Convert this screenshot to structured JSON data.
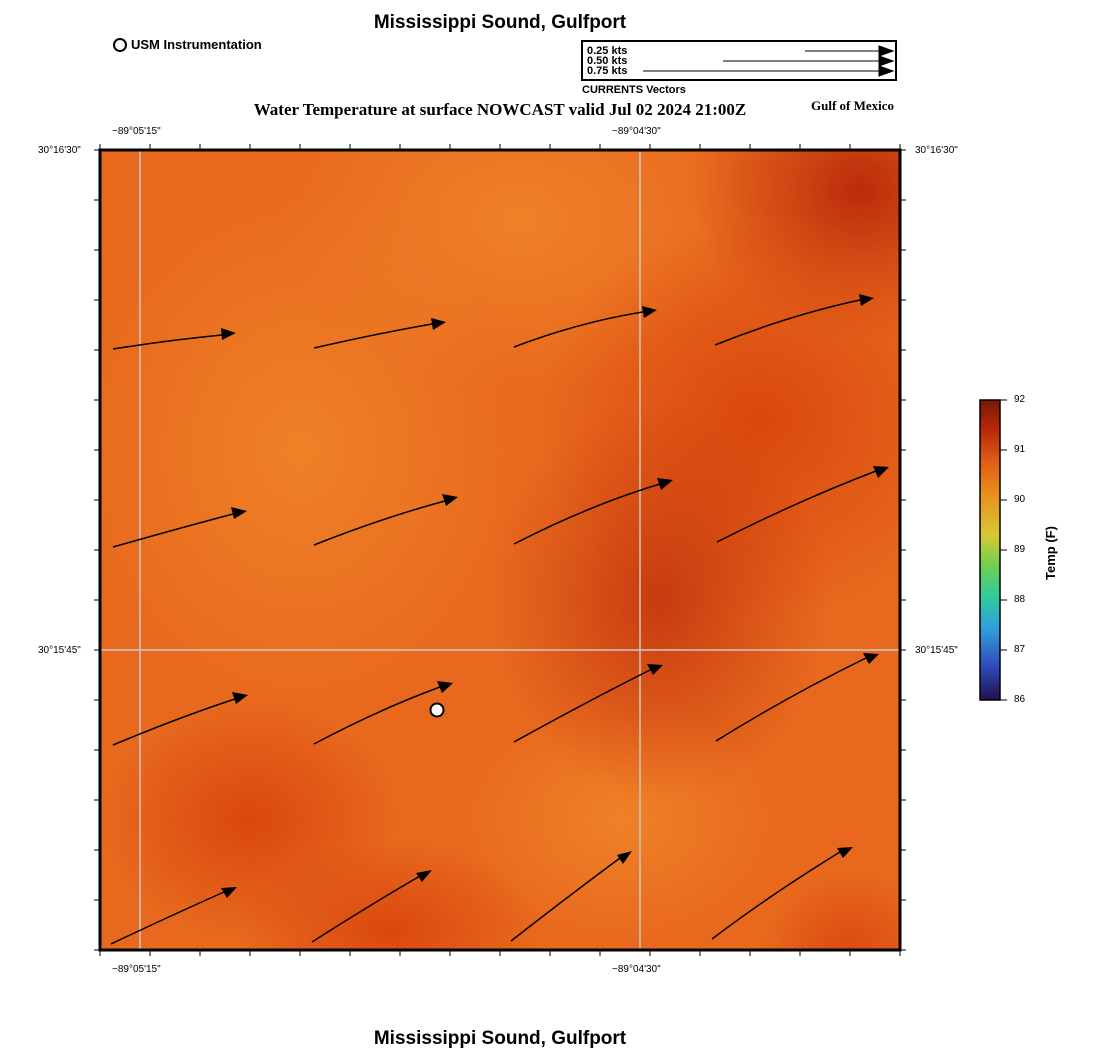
{
  "header": {
    "title": "Mississippi Sound, Gulfport",
    "footer_title": "Mississippi Sound, Gulfport",
    "subtitle": "Water Temperature at surface NOWCAST valid Jul 02 2024 21:00Z",
    "region": "Gulf of Mexico"
  },
  "legend": {
    "station_label": "USM Instrumentation",
    "vector_scale": [
      "0.25 kts",
      "0.50 kts",
      "0.75 kts"
    ],
    "vector_title": "CURRENTS Vectors"
  },
  "axes": {
    "top_lon": [
      "−89°05'15\"",
      "−89°04'30\""
    ],
    "bottom_lon": [
      "−89°05'15\"",
      "−89°04'30\""
    ],
    "left_lat": [
      "30°16'30\"",
      "30°15'45\""
    ],
    "right_lat": [
      "30°16'30\"",
      "30°15'45\""
    ]
  },
  "colorbar": {
    "label": "Temp (F)",
    "ticks": [
      "92",
      "91",
      "90",
      "89",
      "88",
      "87",
      "86"
    ],
    "colors": [
      "#7a1808",
      "#c0300a",
      "#e8741e",
      "#e0c030",
      "#50d060",
      "#30a0d8",
      "#3050c0",
      "#201050"
    ]
  },
  "map": {
    "field_colors": {
      "base": "#e8691e",
      "warm": "#d8440c",
      "hot": "#c0300a",
      "cool": "#ee7c24"
    }
  }
}
